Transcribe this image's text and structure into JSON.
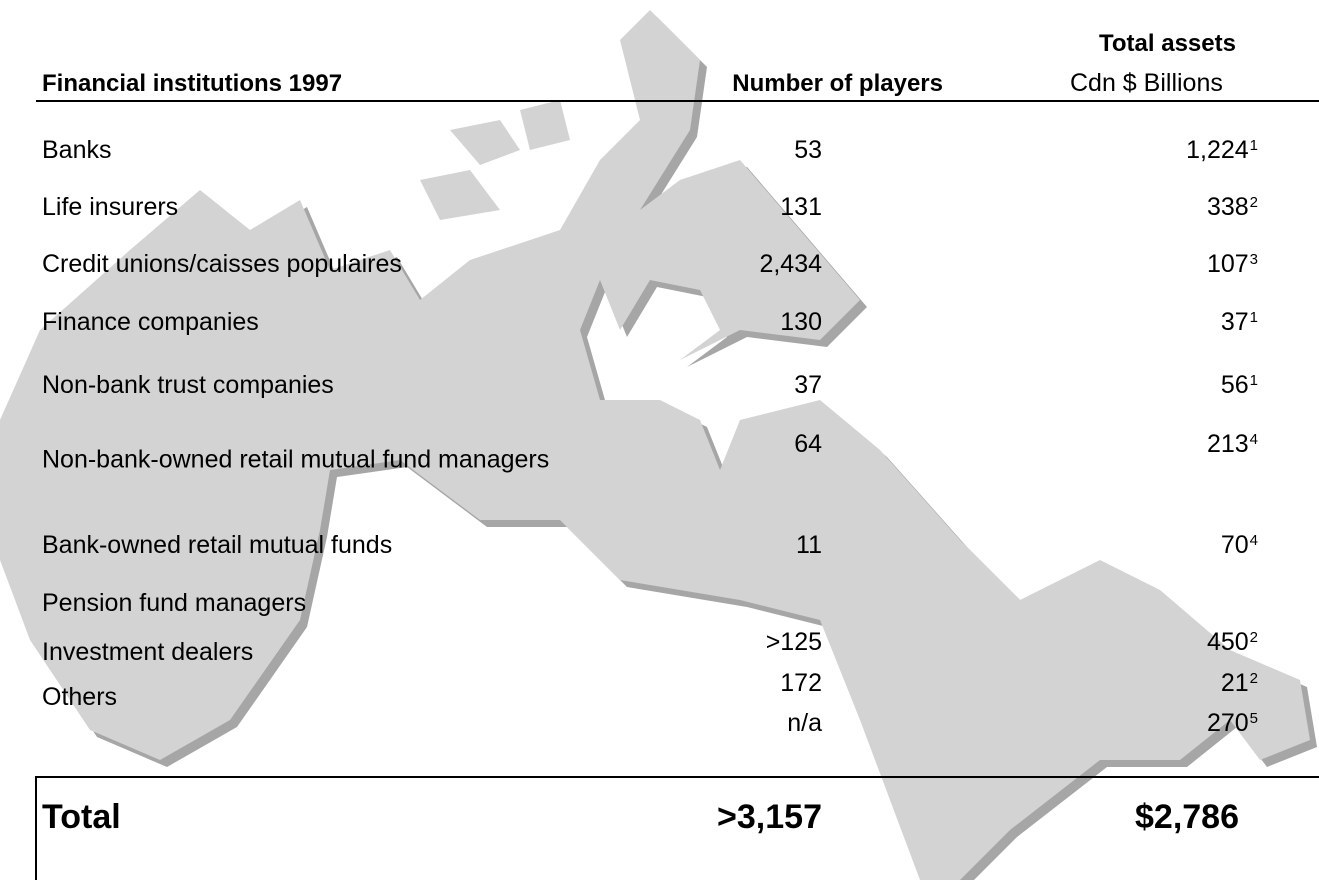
{
  "table": {
    "header": {
      "institutions": "Financial institutions 1997",
      "players": "Number of players",
      "assets_title": "Total assets",
      "assets_unit": "Cdn $ Billions"
    },
    "rows": [
      {
        "label": "Banks",
        "players": "53",
        "assets": "1,224",
        "note": "1"
      },
      {
        "label": "Life insurers",
        "players": "131",
        "assets": "338",
        "note": "2"
      },
      {
        "label": "Credit unions/caisses populaires",
        "players": "2,434",
        "assets": "107",
        "note": "3"
      },
      {
        "label": "Finance companies",
        "players": "130",
        "assets": "37",
        "note": "1"
      },
      {
        "label": "Non-bank trust companies",
        "players": "37",
        "assets": "56",
        "note": "1"
      },
      {
        "label": "Non-bank-owned retail mutual fund managers",
        "players": "64",
        "assets": "213",
        "note": "4"
      },
      {
        "label": "Bank-owned retail mutual funds",
        "players": "11",
        "assets": "70",
        "note": "4"
      },
      {
        "label": "Pension fund managers",
        "players": ">125",
        "assets": "450",
        "note": "2"
      },
      {
        "label": "Investment dealers",
        "players": "172",
        "assets": "21",
        "note": "2"
      },
      {
        "label": "Others",
        "players": "n/a",
        "assets": "270",
        "note": "5"
      }
    ],
    "total": {
      "label": "Total",
      "players": ">3,157",
      "assets": "$2,786"
    }
  }
}
